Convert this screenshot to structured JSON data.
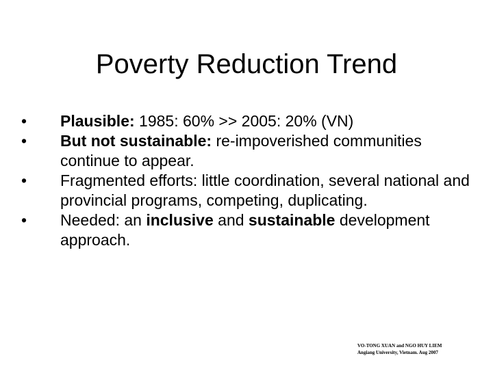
{
  "slide": {
    "title": "Poverty Reduction Trend",
    "bullet_mark": "•",
    "bullets": [
      {
        "bold": "Plausible:",
        "text": " 1985: 60% >> 2005: 20%  (VN)"
      },
      {
        "bold": "But not sustainable:",
        "text": " re-impoverished communities continue to appear."
      },
      {
        "text": "Fragmented efforts: little coordination, several national and provincial programs, competing, duplicating."
      },
      {
        "text_before": "Needed: an ",
        "bold_1": "inclusive",
        "text_middle": " and ",
        "bold_2": "sustainable",
        "text_after": " development approach."
      }
    ]
  },
  "footer": {
    "line1": "VO-TONG XUAN and NGO HUY LIEM",
    "line2": "Angiang University, Vietnam. Aug 2007"
  }
}
